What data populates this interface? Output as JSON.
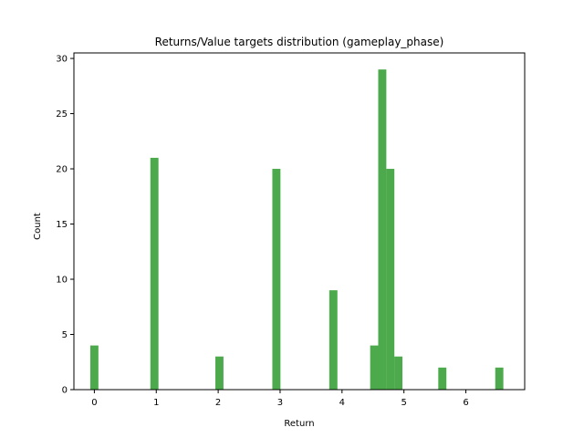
{
  "chart_data": {
    "type": "bar",
    "title": "Returns/Value targets distribution (gameplay_phase)",
    "xlabel": "Return",
    "ylabel": "Count",
    "xlim": [
      -0.33,
      6.95
    ],
    "ylim": [
      0,
      30.5
    ],
    "xticks": [
      0,
      1,
      2,
      3,
      4,
      5,
      6
    ],
    "yticks": [
      0,
      5,
      10,
      15,
      20,
      25,
      30
    ],
    "bar_color": "#4caa4c",
    "bin_width": 0.131,
    "bins": [
      {
        "x": 0.0,
        "value": 4
      },
      {
        "x": 0.97,
        "value": 21
      },
      {
        "x": 2.02,
        "value": 3
      },
      {
        "x": 2.94,
        "value": 20
      },
      {
        "x": 3.86,
        "value": 9
      },
      {
        "x": 4.52,
        "value": 4
      },
      {
        "x": 4.65,
        "value": 29
      },
      {
        "x": 4.78,
        "value": 20
      },
      {
        "x": 4.91,
        "value": 3
      },
      {
        "x": 5.62,
        "value": 2
      },
      {
        "x": 6.54,
        "value": 2
      }
    ],
    "grid": false,
    "legend": "none"
  }
}
